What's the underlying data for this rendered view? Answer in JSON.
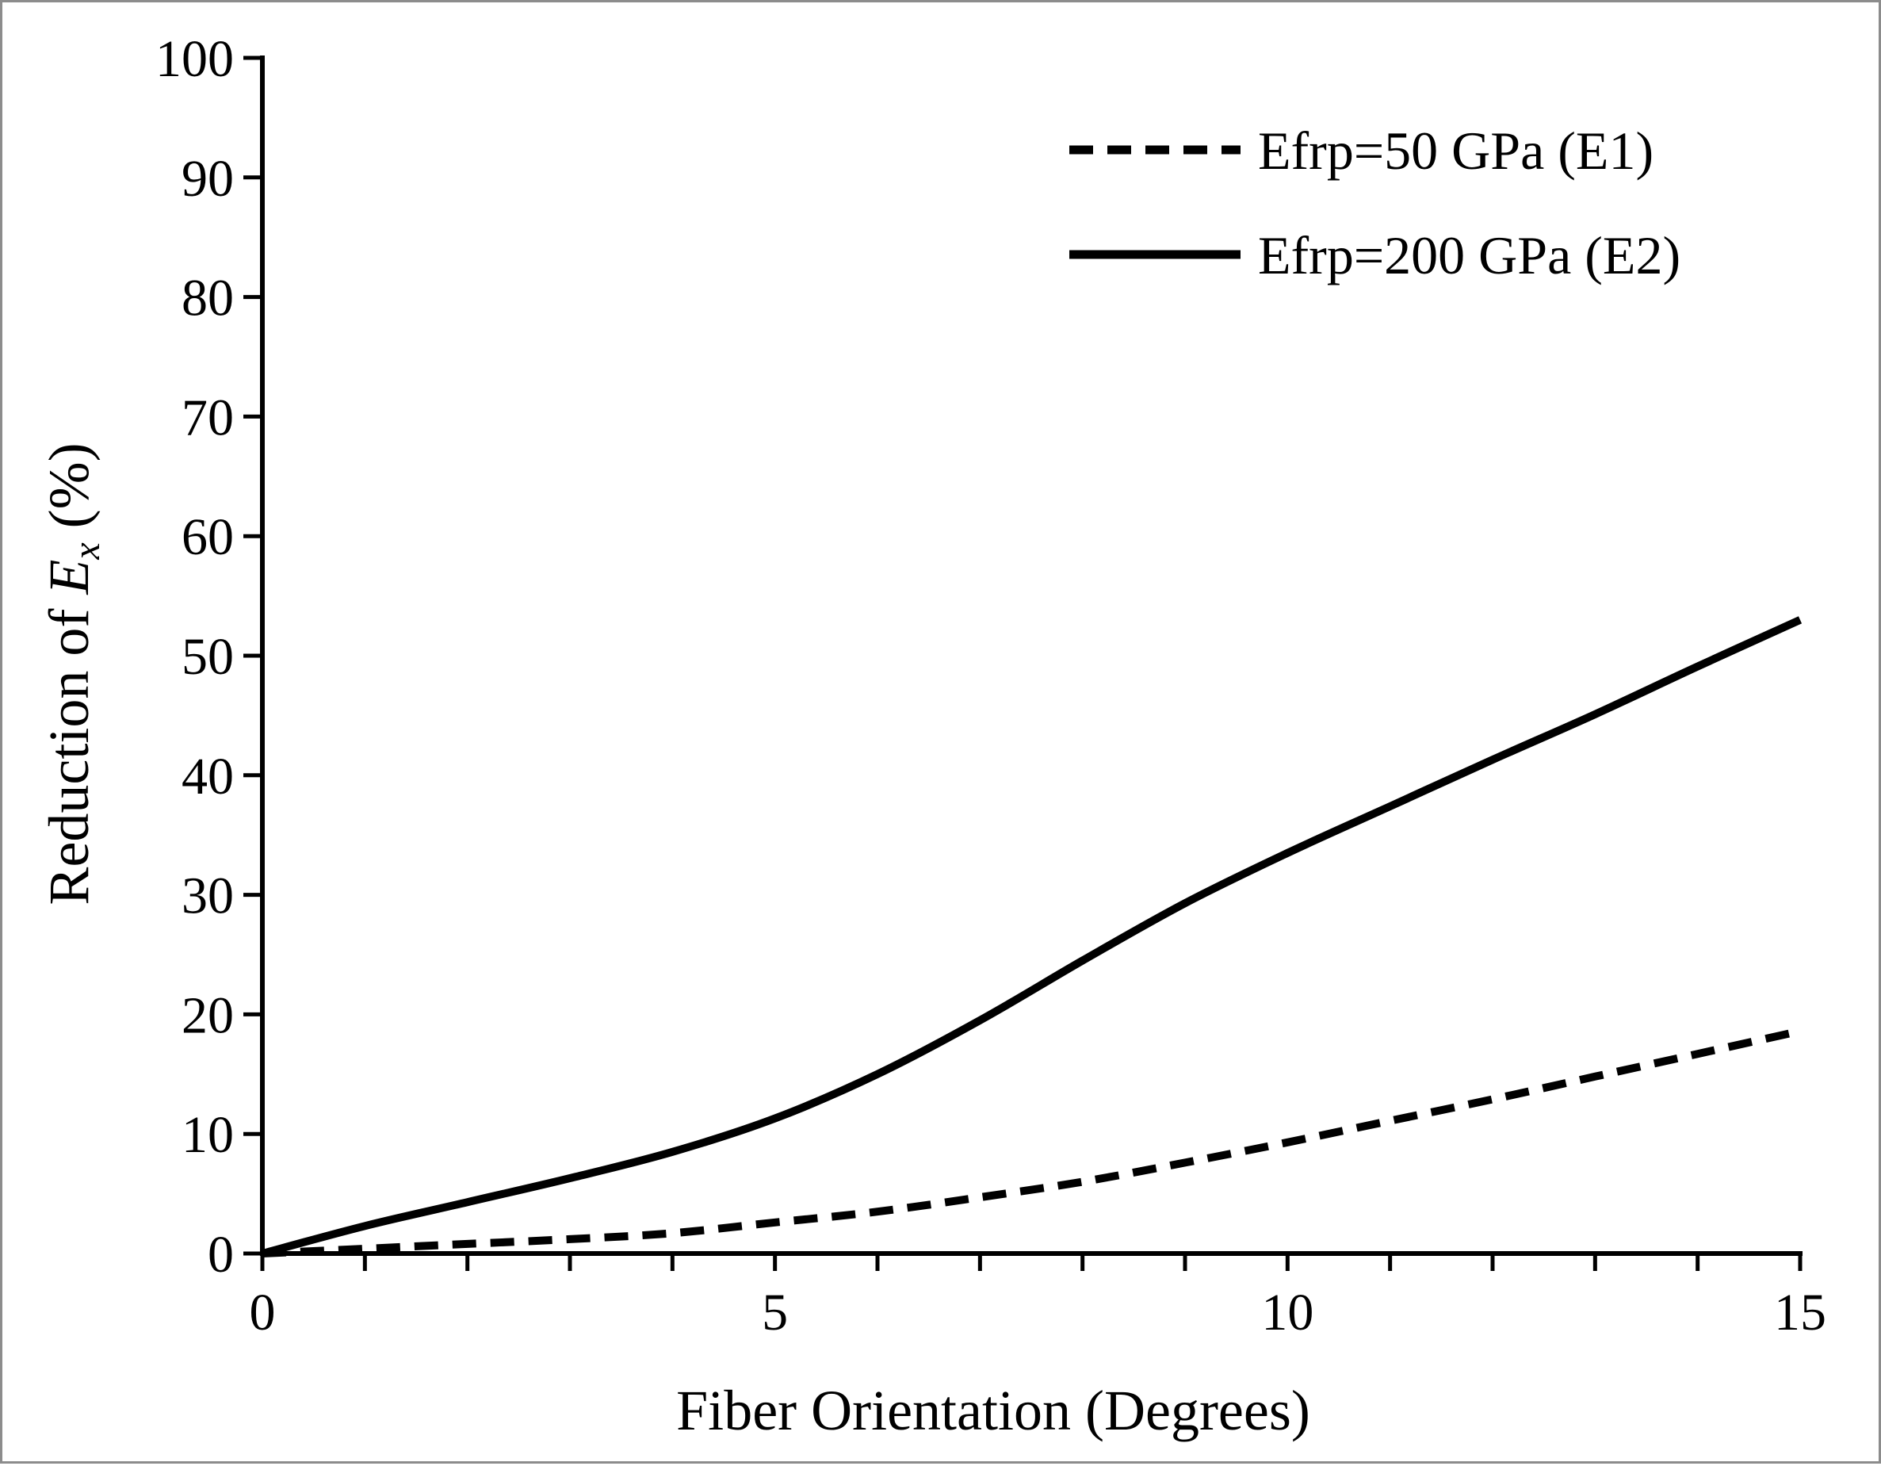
{
  "chart_data": {
    "type": "line",
    "title": "",
    "xlabel": "Fiber Orientation (Degrees)",
    "ylabel": {
      "prefix": "Reduction of ",
      "symbol": "E",
      "subscript": "x",
      "suffix": " (%)"
    },
    "xlim": [
      0,
      15
    ],
    "ylim": [
      0,
      100
    ],
    "xticks": [
      0,
      5,
      10,
      15
    ],
    "xtick_labels": [
      "0",
      "5",
      "10",
      "15"
    ],
    "x_minor_step": 1,
    "yticks": [
      0,
      10,
      20,
      30,
      40,
      50,
      60,
      70,
      80,
      90,
      100
    ],
    "ytick_labels": [
      "0",
      "10",
      "20",
      "30",
      "40",
      "50",
      "60",
      "70",
      "80",
      "90",
      "100"
    ],
    "grid": false,
    "legend_position": "top-right",
    "series": [
      {
        "name": "Efrp=50 GPa (E1)",
        "style": "dashed",
        "color": "#000000",
        "x": [
          0,
          1,
          2,
          3,
          4,
          5,
          6,
          7,
          8,
          9,
          10,
          11,
          12,
          13,
          14,
          15
        ],
        "y": [
          0,
          0.4,
          0.8,
          1.2,
          1.7,
          2.6,
          3.5,
          4.7,
          6.0,
          7.6,
          9.3,
          11.1,
          12.9,
          14.8,
          16.7,
          18.6
        ]
      },
      {
        "name": "Efrp=200 GPa (E2)",
        "style": "solid",
        "color": "#000000",
        "x": [
          0,
          1,
          2,
          3,
          4,
          5,
          6,
          7,
          8,
          9,
          10,
          11,
          12,
          13,
          14,
          15
        ],
        "y": [
          0,
          2.3,
          4.3,
          6.3,
          8.5,
          11.3,
          15.0,
          19.5,
          24.5,
          29.3,
          33.5,
          37.4,
          41.3,
          45.1,
          49.1,
          53.0
        ]
      }
    ]
  }
}
